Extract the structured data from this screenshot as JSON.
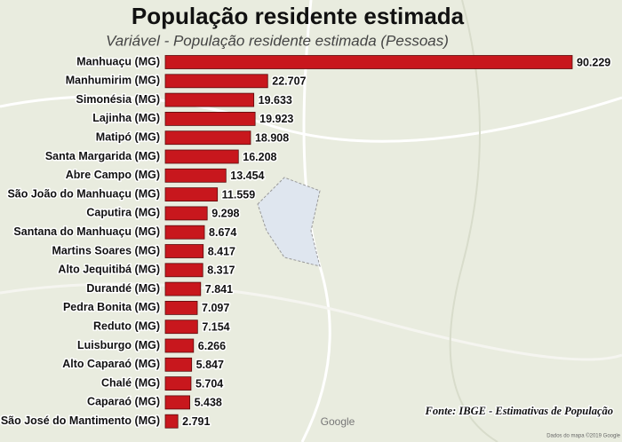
{
  "chart_data": {
    "type": "bar",
    "orientation": "horizontal",
    "title": "População residente estimada",
    "subtitle": "Variável - População residente estimada (Pessoas)",
    "source": "Fonte: IBGE - Estimativas de População",
    "map_attribution": [
      "Google",
      "Dados do mapa ©2019 Google"
    ],
    "color": "#c8171d",
    "categories": [
      "Manhuaçu (MG)",
      "Manhumirim (MG)",
      "Simonésia (MG)",
      "Lajinha (MG)",
      "Matipó (MG)",
      "Santa Margarida (MG)",
      "Abre Campo (MG)",
      "São João do Manhuaçu (MG)",
      "Caputira (MG)",
      "Santana do Manhuaçu (MG)",
      "Martins Soares (MG)",
      "Alto Jequitibá (MG)",
      "Durandé (MG)",
      "Pedra Bonita (MG)",
      "Reduto (MG)",
      "Luisburgo (MG)",
      "Alto Caparaó (MG)",
      "Chalé (MG)",
      "Caparaó (MG)",
      "São José do Mantimento (MG)"
    ],
    "values": [
      90229,
      22707,
      19633,
      19923,
      18908,
      16208,
      13454,
      11559,
      9298,
      8674,
      8417,
      8317,
      7841,
      7097,
      7154,
      6266,
      5847,
      5704,
      5438,
      2791
    ],
    "value_labels": [
      "90.229",
      "22.707",
      "19.633",
      "19.923",
      "18.908",
      "16.208",
      "13.454",
      "11.559",
      "9.298",
      "8.674",
      "8.417",
      "8.317",
      "7.841",
      "7.097",
      "7.154",
      "6.266",
      "5.847",
      "5.704",
      "5.438",
      "2.791"
    ]
  }
}
